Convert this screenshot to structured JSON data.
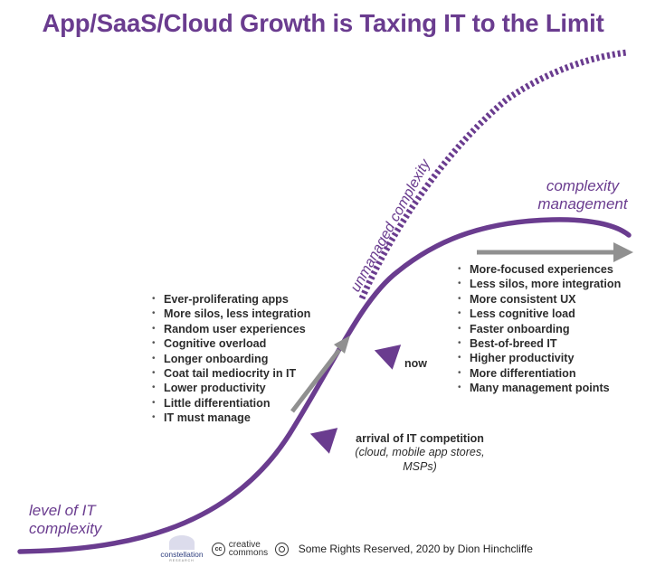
{
  "title": "App/SaaS/Cloud Growth is Taxing IT to the Limit",
  "colors": {
    "purple": "#6a3c8f",
    "gray_arrow": "#909090",
    "text": "#2c2c2c"
  },
  "labels": {
    "level_of_it_complexity": [
      "level of IT",
      "complexity"
    ],
    "complexity_management": [
      "complexity",
      "management"
    ],
    "unmanaged_complexity": "unmanaged complexity",
    "now": "now",
    "arrival_main": "arrival of IT competition",
    "arrival_sub": [
      "(cloud, mobile app stores,",
      "MSPs)"
    ]
  },
  "left_list": [
    "Ever-proliferating apps",
    "More silos, less integration",
    "Random user experiences",
    "Cognitive overload",
    "Longer onboarding",
    "Coat tail mediocrity in IT",
    "Lower productivity",
    "Little differentiation",
    "IT must manage"
  ],
  "right_list": [
    "More-focused experiences",
    "Less silos, more integration",
    "More consistent UX",
    "Less cognitive load",
    "Faster onboarding",
    "Best-of-breed IT",
    "Higher productivity",
    "More differentiation",
    "Many management points"
  ],
  "footer": {
    "logo_name": "constellation",
    "logo_sub": "RESEARCH",
    "cc_symbol": "cc",
    "cc_line1": "creative",
    "cc_line2": "commons",
    "rights": "Some Rights Reserved, 2020 by Dion Hinchcliffe"
  }
}
